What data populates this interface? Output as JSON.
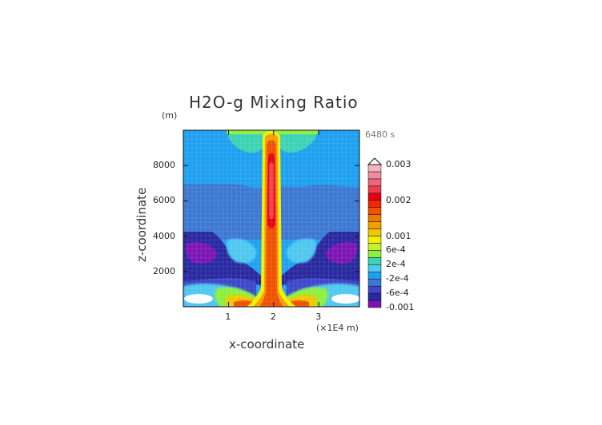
{
  "chart_data": {
    "type": "heatmap",
    "title": "H2O-g Mixing Ratio",
    "xlabel": "x-coordinate",
    "ylabel": "z-coordinate",
    "x_unit": "(×1E4 m)",
    "z_unit": "(m)",
    "time_label": "6480 s",
    "xlim": [
      0,
      3.9
    ],
    "ylim": [
      0,
      10000
    ],
    "x_ticks": [
      "1",
      "2",
      "3"
    ],
    "y_ticks": [
      "2000",
      "4000",
      "6000",
      "8000"
    ],
    "x_tick_values": [
      1,
      2,
      3
    ],
    "y_tick_values": [
      2000,
      4000,
      6000,
      8000
    ],
    "colorbar": {
      "labels": [
        "0.003",
        "0.002",
        "0.001",
        "6e-4",
        "2e-4",
        "-2e-4",
        "-6e-4",
        "-0.001"
      ],
      "label_values": [
        0.003,
        0.002,
        0.001,
        0.0006,
        0.0002,
        -0.0002,
        -0.0006,
        -0.001
      ],
      "levels": [
        -0.001,
        -0.0008,
        -0.0006,
        -0.0004,
        -0.0002,
        0.0,
        0.0002,
        0.0004,
        0.0006,
        0.0008,
        0.001,
        0.0012,
        0.0014,
        0.0016,
        0.0018,
        0.002,
        0.0022,
        0.0024,
        0.0026,
        0.0028,
        0.003
      ],
      "colors": [
        "#7a14b4",
        "#2828a0",
        "#3c46c8",
        "#3c78d2",
        "#1ea0f0",
        "#50c8f0",
        "#3cd2b4",
        "#8cf03c",
        "#c8f028",
        "#f0f000",
        "#f0c800",
        "#f0a000",
        "#f07800",
        "#f05000",
        "#f02800",
        "#e60014",
        "#f03c50",
        "#f06478",
        "#f08ca0",
        "#f5b4be"
      ]
    }
  }
}
